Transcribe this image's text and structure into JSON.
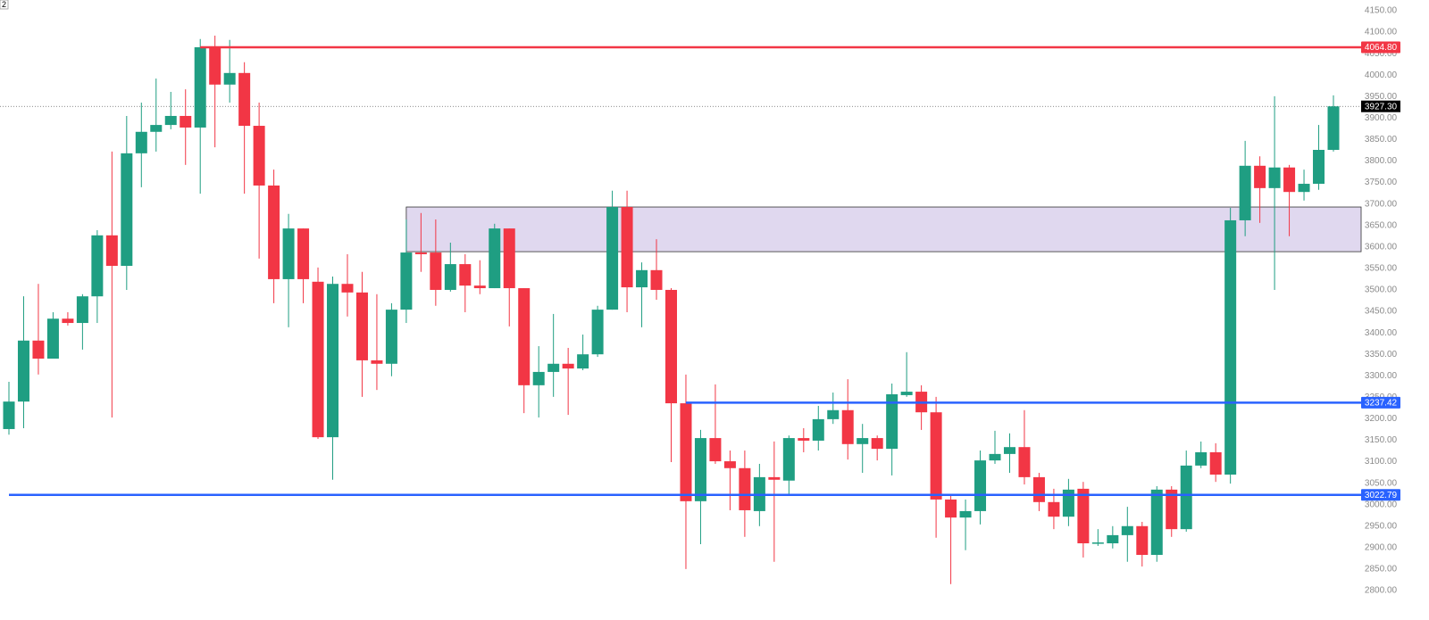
{
  "chart_data": {
    "type": "candlestick",
    "corner_label": "2",
    "up_color": "#1f9e82",
    "down_color": "#f23645",
    "ylim": [
      2800,
      4150
    ],
    "yticks": [
      {
        "value": 2800,
        "label": "2800.00"
      },
      {
        "value": 2850,
        "label": "2850.00"
      },
      {
        "value": 2900,
        "label": "2900.00"
      },
      {
        "value": 2950,
        "label": "2950.00"
      },
      {
        "value": 3000,
        "label": "3000.00"
      },
      {
        "value": 3050,
        "label": "3050.00"
      },
      {
        "value": 3100,
        "label": "3100.00"
      },
      {
        "value": 3150,
        "label": "3150.00"
      },
      {
        "value": 3200,
        "label": "3200.00"
      },
      {
        "value": 3250,
        "label": "3250.00"
      },
      {
        "value": 3300,
        "label": "3300.00"
      },
      {
        "value": 3350,
        "label": "3350.00"
      },
      {
        "value": 3400,
        "label": "3400.00"
      },
      {
        "value": 3450,
        "label": "3450.00"
      },
      {
        "value": 3500,
        "label": "3500.00"
      },
      {
        "value": 3550,
        "label": "3550.00"
      },
      {
        "value": 3600,
        "label": "3600.00"
      },
      {
        "value": 3650,
        "label": "3650.00"
      },
      {
        "value": 3700,
        "label": "3700.00"
      },
      {
        "value": 3750,
        "label": "3750.00"
      },
      {
        "value": 3800,
        "label": "3800.00"
      },
      {
        "value": 3850,
        "label": "3850.00"
      },
      {
        "value": 3900,
        "label": "3900.00"
      },
      {
        "value": 3950,
        "label": "3950.00"
      },
      {
        "value": 4000,
        "label": "4000.00"
      },
      {
        "value": 4050,
        "label": "4050.00"
      },
      {
        "value": 4100,
        "label": "4100.00"
      },
      {
        "value": 4150,
        "label": "4150.00"
      }
    ],
    "grid": false,
    "open": [
      3176,
      3240,
      3382,
      3340,
      3433,
      3423,
      3485,
      3627,
      3556,
      3818,
      3868,
      3884,
      3905,
      3878,
      4065,
      3978,
      4005,
      3882,
      3743,
      3525,
      3643,
      3519,
      3157,
      3514,
      3494,
      3336,
      3328,
      3454,
      3587,
      3587,
      3500,
      3560,
      3510,
      3504,
      3643,
      3504,
      3278,
      3309,
      3328,
      3317,
      3350,
      3454,
      3693,
      3506,
      3546,
      3500,
      3236,
      3008,
      3155,
      3101,
      3085,
      2985,
      3064,
      3056,
      3155,
      3149,
      3199,
      3220,
      3141,
      3155,
      3130,
      3255,
      3263,
      3215,
      3012,
      2970,
      2985,
      3103,
      3118,
      3134,
      3064,
      3006,
      2972,
      3037,
      2910,
      2910,
      2929,
      2950,
      2883,
      3035,
      2943,
      3091,
      3122,
      3070,
      3662,
      3789,
      3737,
      3785,
      3728,
      3747,
      3826
    ],
    "high": [
      3286,
      3485,
      3514,
      3448,
      3448,
      3490,
      3639,
      3822,
      3905,
      3936,
      3992,
      3961,
      3967,
      4084,
      4092,
      4082,
      4030,
      3936,
      3780,
      3677,
      3643,
      3552,
      3531,
      3583,
      3542,
      3490,
      3469,
      3664,
      3679,
      3664,
      3610,
      3583,
      3569,
      3654,
      3643,
      3504,
      3369,
      3444,
      3365,
      3396,
      3463,
      3731,
      3731,
      3564,
      3618,
      3504,
      3303,
      3174,
      3280,
      3126,
      3126,
      3095,
      3147,
      3161,
      3178,
      3230,
      3261,
      3292,
      3188,
      3161,
      3282,
      3355,
      3278,
      3251,
      3022,
      3012,
      3126,
      3172,
      3166,
      3220,
      3074,
      3037,
      3060,
      3053,
      2943,
      2950,
      2995,
      2960,
      3043,
      3043,
      3126,
      3147,
      3143,
      3691,
      3847,
      3811,
      3951,
      3791,
      3780,
      3884,
      3953
    ],
    "low": [
      3163,
      3178,
      3303,
      3340,
      3417,
      3361,
      3423,
      3203,
      3500,
      3739,
      3822,
      3874,
      3791,
      3724,
      3832,
      3936,
      3724,
      3573,
      3469,
      3413,
      3469,
      3153,
      3058,
      3438,
      3251,
      3267,
      3299,
      3423,
      3542,
      3463,
      3496,
      3448,
      3490,
      3504,
      3415,
      3213,
      3203,
      3251,
      3209,
      3313,
      3344,
      3454,
      3448,
      3413,
      3477,
      3099,
      2850,
      2908,
      3095,
      2987,
      2925,
      2950,
      2867,
      3022,
      3122,
      3126,
      3188,
      3105,
      3074,
      3103,
      3068,
      3251,
      3174,
      2923,
      2815,
      2894,
      2954,
      3095,
      3074,
      3047,
      2985,
      2943,
      2950,
      2877,
      2904,
      2898,
      2867,
      2856,
      2867,
      2925,
      2937,
      3085,
      3053,
      3049,
      3625,
      3656,
      3500,
      3625,
      3708,
      3733,
      3822
    ],
    "close": [
      3240,
      3382,
      3340,
      3433,
      3423,
      3485,
      3627,
      3556,
      3818,
      3868,
      3884,
      3905,
      3878,
      4065,
      3978,
      4005,
      3882,
      3743,
      3525,
      3643,
      3525,
      3157,
      3514,
      3494,
      3336,
      3328,
      3454,
      3587,
      3583,
      3500,
      3560,
      3510,
      3504,
      3643,
      3504,
      3278,
      3309,
      3328,
      3317,
      3350,
      3454,
      3693,
      3506,
      3546,
      3500,
      3236,
      3008,
      3155,
      3101,
      3085,
      2987,
      3064,
      3058,
      3155,
      3149,
      3199,
      3220,
      3141,
      3155,
      3130,
      3257,
      3263,
      3215,
      3012,
      2970,
      2985,
      3103,
      3118,
      3134,
      3064,
      3006,
      2972,
      3035,
      2910,
      2912,
      2929,
      2950,
      2883,
      3035,
      2943,
      3091,
      3122,
      3070,
      3662,
      3789,
      3737,
      3785,
      3728,
      3747,
      3826,
      3927.3
    ],
    "zone": {
      "start": 27,
      "top": 3693,
      "bottom": 3589,
      "color": "#e0d8ef"
    },
    "levels": [
      {
        "value": 4064.8,
        "label": "4064.80",
        "color": "#f23645",
        "start": 13
      },
      {
        "value": 3237.42,
        "label": "3237.42",
        "color": "#2962ff",
        "start": 46
      },
      {
        "value": 3022.79,
        "label": "3022.79",
        "color": "#2962ff",
        "start": 0
      }
    ],
    "last_price": {
      "value": 3927.3,
      "label": "3927.30",
      "color": "#000000"
    }
  }
}
